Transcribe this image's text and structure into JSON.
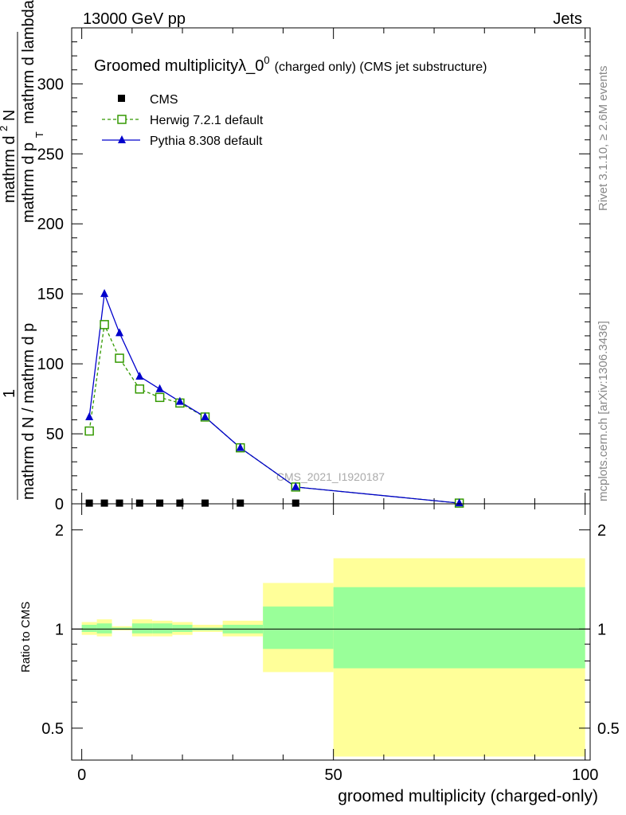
{
  "header": {
    "left": "13000 GeV pp",
    "right": "Jets"
  },
  "side_labels": {
    "rivet": "Rivet 3.1.10, ≥ 2.6M events",
    "mcplots": "mcplots.cern.ch [arXiv:1306.3436]"
  },
  "chart_data": [
    {
      "type": "line",
      "title_main": "Groomed multiplicityλ_0",
      "title_sup": "0",
      "title_tail": "(charged only) (CMS jet substructure)",
      "ylabel_top": "1",
      "ylabel_mid": "mathrm d N / mathrm d p",
      "ylabel_mid2": "mathrm d p",
      "ylabel_sub": "T",
      "ylabel_tail": "mathrm d lambda",
      "ylabel_num": "mathrm d",
      "ylabel_num_sup": "2",
      "ylabel_num_tail": "N",
      "watermark": "CMS_2021_I1920187",
      "xlim": [
        -2,
        101
      ],
      "ylim": [
        0,
        340
      ],
      "yticks": [
        "0",
        "50",
        "100",
        "150",
        "200",
        "250",
        "300"
      ],
      "legend_position": "top-left",
      "series": [
        {
          "name": "CMS",
          "marker": "filled-square",
          "color": "#000000",
          "x": [
            1.5,
            4.5,
            7.5,
            11.5,
            15.5,
            19.5,
            24.5,
            31.5,
            42.5
          ],
          "y": [
            0.5,
            0.5,
            0.5,
            0.5,
            0.5,
            0.5,
            0.5,
            0.5,
            0.5
          ]
        },
        {
          "name": "Herwig 7.2.1 default",
          "marker": "open-square",
          "line": "dashed",
          "color": "#339900",
          "x": [
            1.5,
            4.5,
            7.5,
            11.5,
            15.5,
            19.5,
            24.5,
            31.5,
            42.5,
            75.0
          ],
          "y": [
            52,
            128,
            104,
            82,
            76,
            72,
            62,
            40,
            12,
            0.5
          ]
        },
        {
          "name": "Pythia 8.308 default",
          "marker": "filled-triangle",
          "line": "solid",
          "color": "#0000cc",
          "x": [
            1.5,
            4.5,
            7.5,
            11.5,
            15.5,
            19.5,
            24.5,
            31.5,
            42.5,
            75.0
          ],
          "y": [
            62,
            150,
            122,
            91,
            82,
            73,
            62,
            40,
            12,
            0.5
          ]
        }
      ]
    },
    {
      "type": "area",
      "ylabel": "Ratio to CMS",
      "xlabel": "groomed multiplicity (charged-only)",
      "xlim": [
        -2,
        101
      ],
      "ylim": [
        0.4,
        2.4
      ],
      "log_y": true,
      "xticks": [
        "0",
        "50",
        "100"
      ],
      "yticks": [
        "0.5",
        "1",
        "2"
      ],
      "reference": 1.0,
      "colors": {
        "outer_band": "#ffff99",
        "inner_band": "#99ff99"
      },
      "bands": [
        {
          "x0": 0,
          "x1": 3,
          "outer": [
            0.96,
            1.05
          ],
          "inner": [
            0.98,
            1.03
          ]
        },
        {
          "x0": 3,
          "x1": 6,
          "outer": [
            0.95,
            1.07
          ],
          "inner": [
            0.97,
            1.04
          ]
        },
        {
          "x0": 6,
          "x1": 10,
          "outer": [
            0.99,
            1.02
          ],
          "inner": [
            0.995,
            1.01
          ]
        },
        {
          "x0": 10,
          "x1": 14,
          "outer": [
            0.95,
            1.07
          ],
          "inner": [
            0.97,
            1.04
          ]
        },
        {
          "x0": 14,
          "x1": 18,
          "outer": [
            0.95,
            1.06
          ],
          "inner": [
            0.97,
            1.04
          ]
        },
        {
          "x0": 18,
          "x1": 22,
          "outer": [
            0.96,
            1.05
          ],
          "inner": [
            0.98,
            1.03
          ]
        },
        {
          "x0": 22,
          "x1": 28,
          "outer": [
            0.98,
            1.03
          ],
          "inner": [
            0.99,
            1.01
          ]
        },
        {
          "x0": 28,
          "x1": 36,
          "outer": [
            0.95,
            1.06
          ],
          "inner": [
            0.97,
            1.03
          ]
        },
        {
          "x0": 36,
          "x1": 50,
          "outer": [
            0.74,
            1.38
          ],
          "inner": [
            0.87,
            1.17
          ]
        },
        {
          "x0": 50,
          "x1": 100,
          "outer": [
            0.41,
            1.64
          ],
          "inner": [
            0.76,
            1.34
          ]
        }
      ]
    }
  ]
}
